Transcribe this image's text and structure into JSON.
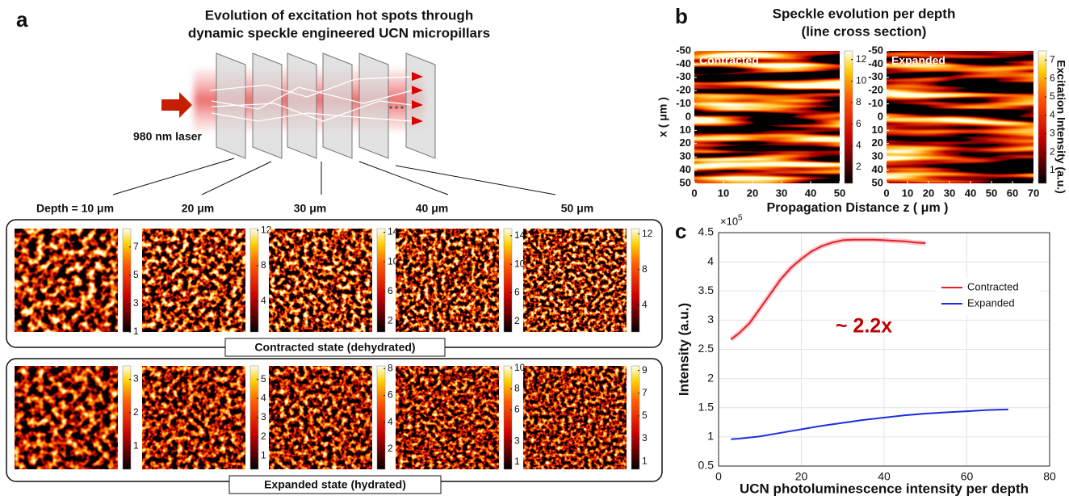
{
  "panel_labels": [
    "a",
    "b",
    "c"
  ],
  "diagram": {
    "title": [
      "Evolution of excitation hot spots through",
      "dynamic speckle engineered UCN micropillars"
    ],
    "laser_label": "980 nm laser",
    "depths": [
      "Depth = 10 μm",
      "20 μm",
      "30 μm",
      "40 μm",
      "50 μm"
    ],
    "rows": [
      {
        "label": "Contracted state (dehydrated)",
        "colorbars": [
          {
            "lim": [
              1,
              8.3
            ],
            "ticks": [
              1,
              3,
              5,
              7
            ]
          },
          {
            "lim": [
              0.5,
              12.2
            ],
            "ticks": [
              4,
              8,
              12
            ]
          },
          {
            "lim": [
              0.5,
              14.5
            ],
            "ticks": [
              2,
              6,
              10,
              14
            ]
          },
          {
            "lim": [
              0.5,
              15
            ],
            "ticks": [
              2,
              6,
              10,
              14
            ]
          },
          {
            "lim": [
              1,
              12.6
            ],
            "ticks": [
              4,
              8,
              12
            ]
          }
        ]
      },
      {
        "label": "Expanded state (hydrated)",
        "colorbars": [
          {
            "lim": [
              0.3,
              3.4
            ],
            "ticks": [
              1,
              2,
              3
            ]
          },
          {
            "lim": [
              0.3,
              5.7
            ],
            "ticks": [
              1,
              2,
              3,
              4,
              5
            ]
          },
          {
            "lim": [
              0.5,
              8.2
            ],
            "ticks": [
              2,
              4,
              6,
              8
            ]
          },
          {
            "lim": [
              0.3,
              10.2
            ],
            "ticks": [
              1,
              3,
              6,
              8,
              10
            ]
          },
          {
            "lim": [
              0.3,
              9.4
            ],
            "ticks": [
              1,
              3,
              5,
              7,
              9
            ]
          }
        ]
      }
    ]
  },
  "chart_data": [
    {
      "type": "heatmap",
      "title": [
        "Speckle evolution per depth",
        "(line cross section)"
      ],
      "label": "Contracted",
      "ylabel": "x ( μm )",
      "xlim": [
        0,
        50
      ],
      "xticks": [
        0,
        10,
        20,
        30,
        40,
        50
      ],
      "ylim": [
        -50,
        50
      ],
      "yticks": [
        -50,
        -40,
        -30,
        -20,
        -10,
        0,
        10,
        20,
        30,
        40,
        50
      ],
      "clim": [
        0.5,
        12.8
      ],
      "cticks": [
        2,
        4,
        6,
        8,
        10,
        12
      ]
    },
    {
      "type": "heatmap",
      "label": "Expanded",
      "xlabel": "Propagation Distance z ( μm )",
      "xlim": [
        0,
        70
      ],
      "xticks": [
        0,
        10,
        20,
        30,
        40,
        50,
        60,
        70
      ],
      "ylim": [
        -50,
        50
      ],
      "yticks": [
        -50,
        -40,
        -30,
        -20,
        -10,
        0,
        10,
        20,
        30,
        40,
        50
      ],
      "clim": [
        0.3,
        7.5
      ],
      "cticks": [
        1,
        2,
        3,
        4,
        5,
        6,
        7
      ],
      "clabel": "Excitation Intensity (a.u.)"
    },
    {
      "type": "line",
      "xlabel": "UCN photoluminescence intensity per depth",
      "ylabel": "Intensity (a.u.)",
      "y_multiplier": {
        "base": "×10",
        "exponent": "5"
      },
      "annotation": "~ 2.2x",
      "xlim": [
        0,
        80
      ],
      "xticks": [
        0,
        20,
        40,
        60,
        80
      ],
      "ylim": [
        0.5,
        4.5
      ],
      "yticks": [
        0.5,
        1,
        1.5,
        2,
        2.5,
        3,
        3.5,
        4,
        4.5
      ],
      "grid": true,
      "legend": "right",
      "series": [
        {
          "name": "Contracted",
          "color": "#e8202a",
          "x": [
            3,
            5,
            7.5,
            10,
            12.5,
            15,
            17.5,
            20,
            22.5,
            25,
            27.5,
            30,
            32.5,
            35,
            37.5,
            40,
            42.5,
            45,
            47.5,
            50
          ],
          "values": [
            2.67,
            2.78,
            2.95,
            3.2,
            3.45,
            3.7,
            3.9,
            4.05,
            4.18,
            4.27,
            4.33,
            4.37,
            4.38,
            4.38,
            4.38,
            4.37,
            4.36,
            4.35,
            4.33,
            4.32
          ]
        },
        {
          "name": "Expanded",
          "color": "#1c2ee0",
          "x": [
            3,
            5,
            10,
            15,
            20,
            25,
            30,
            35,
            40,
            45,
            50,
            55,
            60,
            65,
            70
          ],
          "values": [
            0.96,
            0.97,
            1.01,
            1.07,
            1.13,
            1.19,
            1.24,
            1.29,
            1.33,
            1.37,
            1.4,
            1.42,
            1.44,
            1.46,
            1.47
          ]
        }
      ]
    }
  ]
}
